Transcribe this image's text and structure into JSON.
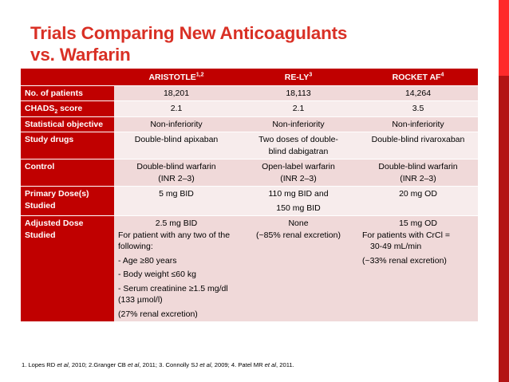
{
  "title": {
    "line1": "Trials Comparing New Anticoagulants",
    "line2": "vs. Warfarin"
  },
  "table": {
    "headers": [
      {
        "label": "ARISTOTLE",
        "sup": "1,2"
      },
      {
        "label": "RE-LY",
        "sup": "3"
      },
      {
        "label": "ROCKET AF",
        "sup": "4"
      }
    ],
    "rows": {
      "patients": {
        "label": "No. of patients",
        "values": [
          "18,201",
          "18,113",
          "14,264"
        ]
      },
      "chads": {
        "label_main": "CHADS",
        "label_sub": "2",
        "label_tail": " score",
        "values": [
          "2.1",
          "2.1",
          "3.5"
        ]
      },
      "objective": {
        "label": "Statistical objective",
        "values": [
          "Non-inferiority",
          "Non-inferiority",
          "Non-inferiority"
        ]
      },
      "drugs": {
        "label": "Study drugs",
        "aristotle": "Double-blind apixaban",
        "rely": [
          "Two doses of double-",
          "blind dabigatran"
        ],
        "rocket": "Double-blind rivaroxaban"
      },
      "control": {
        "label": "Control",
        "aristotle": [
          "Double-blind warfarin",
          "(INR 2–3)"
        ],
        "rely": [
          "Open-label warfarin",
          "(INR 2–3)"
        ],
        "rocket": [
          "Double-blind warfarin",
          "(INR 2–3)"
        ]
      },
      "primary_dose": {
        "label": "Primary Dose(s) Studied",
        "aristotle": "5 mg BID",
        "rely": [
          "110 mg BID and",
          "150 mg BID"
        ],
        "rocket": "20 mg OD"
      },
      "adjusted_dose": {
        "label": "Adjusted Dose Studied",
        "aristotle": {
          "dose": "2.5 mg BID",
          "lines": [
            "For patient with any two of the following:",
            "- Age ≥80 years",
            "- Body weight ≤60 kg",
            "- Serum creatinine ≥1.5 mg/dl (133 µmol/l)",
            "(27% renal excretion)"
          ]
        },
        "rely": {
          "dose": "None",
          "note": "(~85% renal excretion)"
        },
        "rocket": {
          "dose": "15 mg OD",
          "line1": "For patients with CrCl =",
          "line2": "30-49 mL/min",
          "note": "(~33% renal excretion)"
        }
      }
    }
  },
  "footnote": {
    "p1": "1. Lopes RD ",
    "etal": "et al",
    "p2": ", 2010; 2.Granger CB ",
    "p3": ", 2011; 3. Connolly SJ ",
    "p4": ", 2009; 4. Patel MR ",
    "p5": ", 2011."
  },
  "colors": {
    "title": "#d93025",
    "header_bg": "#c00000",
    "row_odd": "#f0d9d9",
    "row_even": "#f7ecec",
    "accent": "#ff2a2a"
  }
}
